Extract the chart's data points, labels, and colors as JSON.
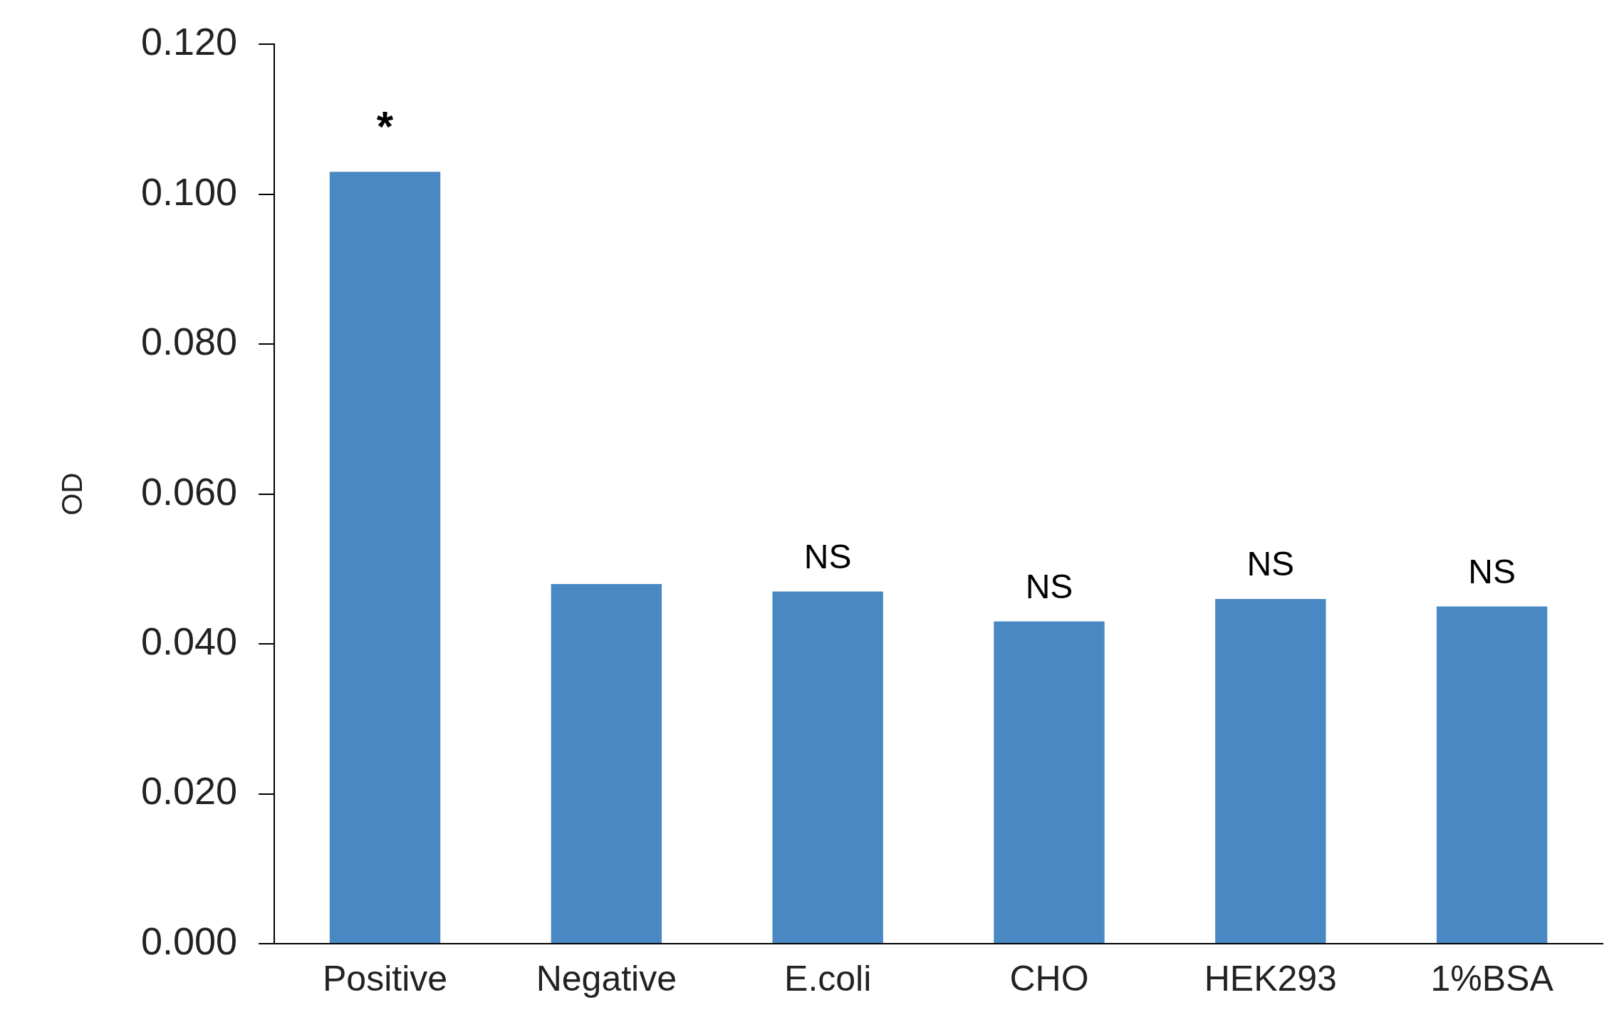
{
  "chart_data": {
    "type": "bar",
    "ylabel": "OD",
    "categories": [
      "Positive",
      "Negative",
      "E.coli",
      "CHO",
      "HEK293",
      "1%BSA"
    ],
    "values": [
      0.103,
      0.048,
      0.047,
      0.043,
      0.046,
      0.045
    ],
    "color": "#4a88c4",
    "ylim": [
      0,
      0.12
    ],
    "yticks": [
      {
        "value": 0,
        "label": "0.000"
      },
      {
        "value": 0.02,
        "label": "0.020"
      },
      {
        "value": 0.04,
        "label": "0.040"
      },
      {
        "value": 0.06,
        "label": "0.060"
      },
      {
        "value": 0.08,
        "label": "0.080"
      },
      {
        "value": 0.1,
        "label": "0.100"
      },
      {
        "value": 0.12,
        "label": "0.120"
      }
    ],
    "grid": false,
    "legend": false,
    "annotations": [
      {
        "text": "*",
        "x": "Positive",
        "y": 0.103
      },
      {
        "text": "NS",
        "x": "E.coli",
        "y": 0.047
      },
      {
        "text": "NS",
        "x": "CHO",
        "y": 0.043
      },
      {
        "text": "NS",
        "x": "HEK293",
        "y": 0.046
      },
      {
        "text": "NS",
        "x": "1%BSA",
        "y": 0.045
      }
    ]
  }
}
